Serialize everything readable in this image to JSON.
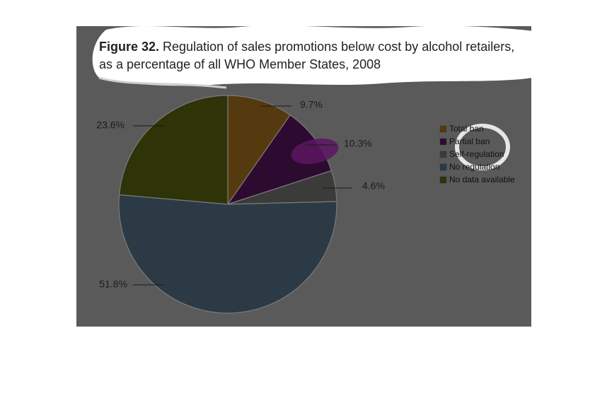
{
  "title": {
    "figure_label": "Figure 32.",
    "text": " Regulation of sales promotions below cost by alcohol retailers,",
    "line2": "as a percentage of all WHO Member States, 2008"
  },
  "chart_data": {
    "type": "pie",
    "slices": [
      {
        "name": "Total ban",
        "value": 9.7,
        "label": "9.7%",
        "color": "#563a0f"
      },
      {
        "name": "Partial ban",
        "value": 10.3,
        "label": "10.3%",
        "color": "#2d0a2f"
      },
      {
        "name": "Self-regulation",
        "value": 4.6,
        "label": "4.6%",
        "color": "#3b3b39"
      },
      {
        "name": "No regulation",
        "value": 51.8,
        "label": "51.8%",
        "color": "#2c3a45"
      },
      {
        "name": "No data available",
        "value": 23.6,
        "label": "23.6%",
        "color": "#2e3308"
      }
    ],
    "legend_position": "right"
  }
}
